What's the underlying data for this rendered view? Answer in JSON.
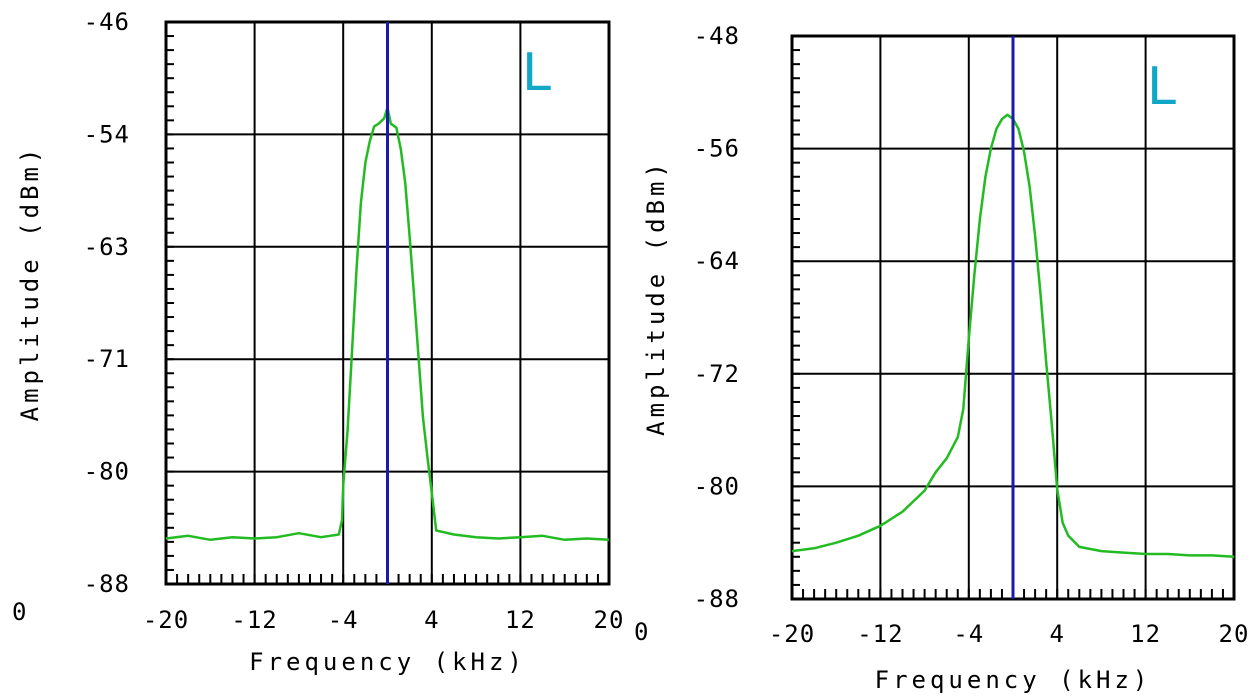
{
  "colors": {
    "trace": "#22bb22",
    "center_line": "#1a1ab0",
    "grid": "#000000",
    "marker": "#11a8c8"
  },
  "chart_data": [
    {
      "type": "line",
      "marker_label": "L",
      "xlabel": "Frequency (kHz)",
      "ylabel": "Amplitude (dBm)",
      "xlim": [
        -20,
        20
      ],
      "ylim": [
        -88,
        -46
      ],
      "x_ticks": [
        -20,
        -12,
        -4,
        4,
        12,
        20
      ],
      "x_tick_labels": [
        "-20",
        "-12",
        "-4",
        "4",
        "12",
        "20"
      ],
      "y_ticks": [
        -46,
        -54,
        -63,
        -71,
        -80,
        -88
      ],
      "y_tick_labels": [
        "-46",
        "-54",
        "-63",
        "-71",
        "-80",
        "-88"
      ],
      "stray_label": "0",
      "center_frequency": 0,
      "grid": true,
      "series": [
        {
          "x": [
            -20,
            -18,
            -16,
            -14,
            -12,
            -10,
            -8,
            -6,
            -4.4,
            -4.1,
            -4,
            -3.6,
            -3.2,
            -2.8,
            -2.4,
            -2,
            -1.6,
            -1.2,
            -0.8,
            -0.3,
            0,
            0.3,
            0.8,
            1.2,
            1.6,
            2,
            2.4,
            2.8,
            3.2,
            3.6,
            4,
            4.4,
            6,
            8,
            10,
            12,
            14,
            16,
            18,
            20
          ],
          "y": [
            -84.6,
            -84.4,
            -84.7,
            -84.5,
            -84.6,
            -84.5,
            -84.2,
            -84.5,
            -84.3,
            -83.2,
            -80.6,
            -76.5,
            -70.5,
            -64.5,
            -59.5,
            -56.5,
            -54.9,
            -53.8,
            -53.6,
            -53.2,
            -52.4,
            -53.6,
            -53.9,
            -55.5,
            -58,
            -62,
            -66.5,
            -71,
            -75.5,
            -78.5,
            -81.2,
            -84,
            -84.3,
            -84.5,
            -84.6,
            -84.5,
            -84.4,
            -84.7,
            -84.6,
            -84.7
          ]
        }
      ]
    },
    {
      "type": "line",
      "marker_label": "L",
      "xlabel": "Frequency (kHz)",
      "ylabel": "Amplitude (dBm)",
      "xlim": [
        -20,
        20
      ],
      "ylim": [
        -88,
        -48
      ],
      "x_ticks": [
        -20,
        -12,
        -4,
        4,
        12,
        20
      ],
      "x_tick_labels": [
        "-20",
        "-12",
        "-4",
        "4",
        "12",
        "20"
      ],
      "y_ticks": [
        -48,
        -56,
        -64,
        -72,
        -80,
        -88
      ],
      "y_tick_labels": [
        "-48",
        "-56",
        "-64",
        "-72",
        "-80",
        "-88"
      ],
      "stray_label": "0",
      "center_frequency": 0,
      "grid": true,
      "series": [
        {
          "x": [
            -20,
            -18,
            -16,
            -14,
            -12,
            -10,
            -8,
            -7,
            -6,
            -5,
            -4.5,
            -4,
            -3.5,
            -3,
            -2.5,
            -2,
            -1.5,
            -1,
            -0.5,
            0,
            0.5,
            1,
            1.5,
            2,
            2.5,
            3,
            3.5,
            4,
            4.5,
            5,
            6,
            8,
            10,
            12,
            14,
            16,
            18,
            20
          ],
          "y": [
            -84.6,
            -84.4,
            -84,
            -83.5,
            -82.8,
            -81.8,
            -80.3,
            -79,
            -78,
            -76.5,
            -74.5,
            -69.5,
            -65,
            -61,
            -58,
            -56,
            -54.6,
            -53.9,
            -53.6,
            -53.9,
            -54.6,
            -56.2,
            -58.7,
            -62.2,
            -66.4,
            -71.2,
            -75.5,
            -80.2,
            -82.6,
            -83.5,
            -84.3,
            -84.6,
            -84.7,
            -84.8,
            -84.8,
            -84.9,
            -84.9,
            -85
          ]
        }
      ]
    }
  ]
}
